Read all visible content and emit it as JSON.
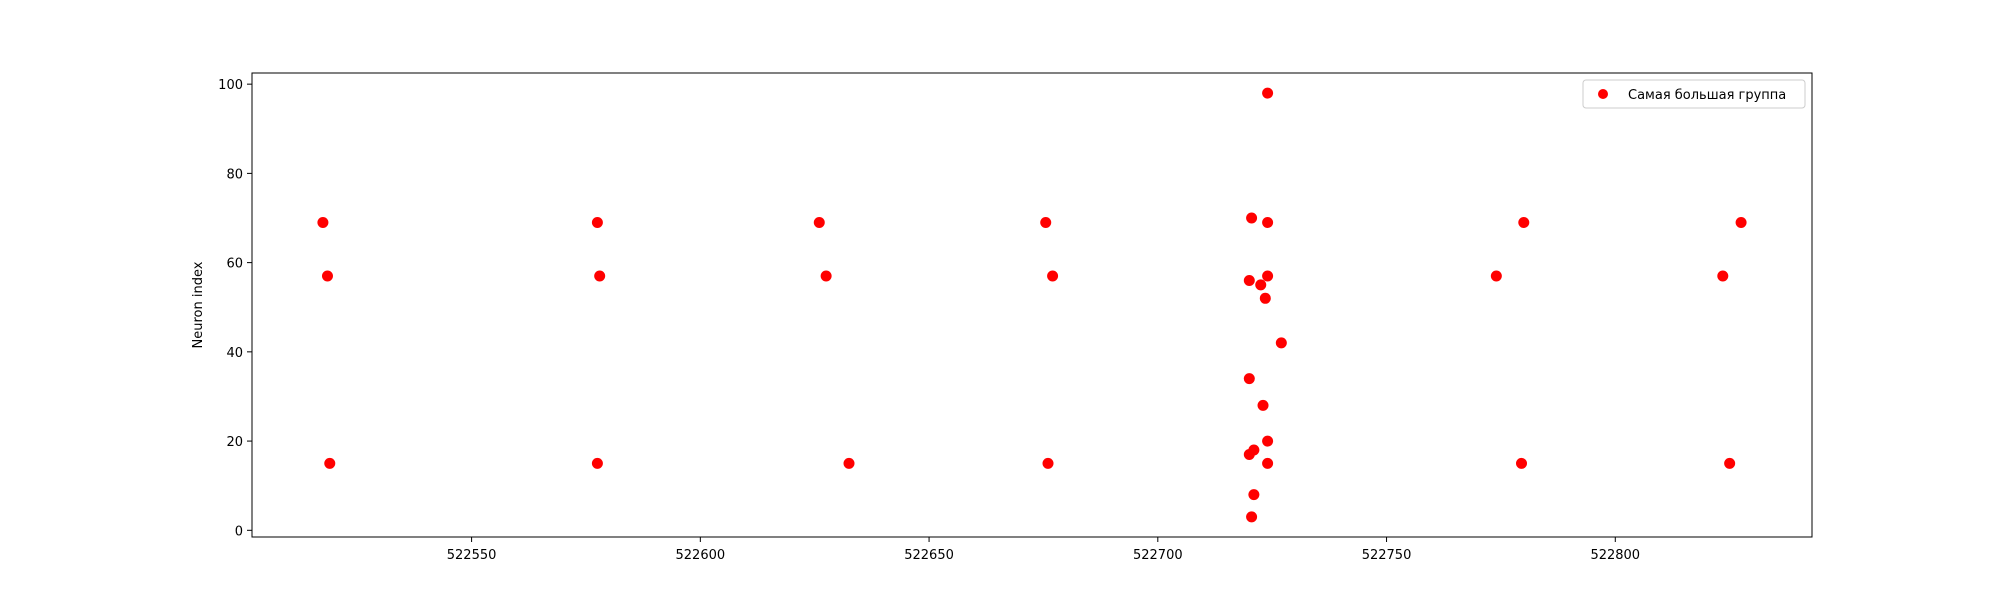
{
  "chart_data": {
    "type": "scatter",
    "title": "",
    "xlabel": "",
    "ylabel": "Neuron index",
    "xlim": [
      522502,
      522843
    ],
    "ylim": [
      -1.5,
      102.5
    ],
    "xticks": [
      522550,
      522600,
      522650,
      522700,
      522750,
      522800
    ],
    "yticks": [
      0,
      20,
      40,
      60,
      80,
      100
    ],
    "grid": false,
    "legend_position": "top-right",
    "series": [
      {
        "name": "Самая большая группа",
        "color": "#ff0000",
        "points": [
          {
            "x": 522517.5,
            "y": 69
          },
          {
            "x": 522518.5,
            "y": 57
          },
          {
            "x": 522519.0,
            "y": 15
          },
          {
            "x": 522577.5,
            "y": 69
          },
          {
            "x": 522578.0,
            "y": 57
          },
          {
            "x": 522577.5,
            "y": 15
          },
          {
            "x": 522626.0,
            "y": 69
          },
          {
            "x": 522627.5,
            "y": 57
          },
          {
            "x": 522632.5,
            "y": 15
          },
          {
            "x": 522675.5,
            "y": 69
          },
          {
            "x": 522677.0,
            "y": 57
          },
          {
            "x": 522676.0,
            "y": 15
          },
          {
            "x": 522720.5,
            "y": 70
          },
          {
            "x": 522724.0,
            "y": 98
          },
          {
            "x": 522724.0,
            "y": 69
          },
          {
            "x": 522724.0,
            "y": 57
          },
          {
            "x": 522720.0,
            "y": 56
          },
          {
            "x": 522722.5,
            "y": 55
          },
          {
            "x": 522723.5,
            "y": 52
          },
          {
            "x": 522727.0,
            "y": 42
          },
          {
            "x": 522720.0,
            "y": 34
          },
          {
            "x": 522723.0,
            "y": 28
          },
          {
            "x": 522724.0,
            "y": 20
          },
          {
            "x": 522721.0,
            "y": 18
          },
          {
            "x": 522720.0,
            "y": 17
          },
          {
            "x": 522724.0,
            "y": 15
          },
          {
            "x": 522721.0,
            "y": 8
          },
          {
            "x": 522720.5,
            "y": 3
          },
          {
            "x": 522780.0,
            "y": 69
          },
          {
            "x": 522774.0,
            "y": 57
          },
          {
            "x": 522779.5,
            "y": 15
          },
          {
            "x": 522827.5,
            "y": 69
          },
          {
            "x": 522823.5,
            "y": 57
          },
          {
            "x": 522825.0,
            "y": 15
          }
        ]
      }
    ]
  }
}
